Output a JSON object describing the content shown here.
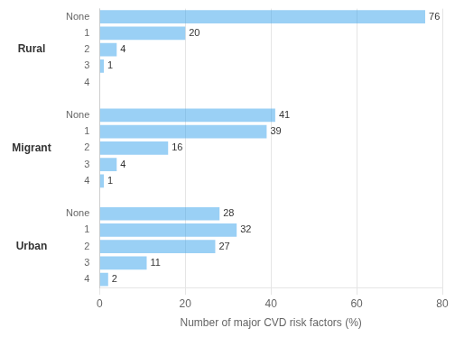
{
  "chart_data": {
    "type": "bar",
    "orientation": "horizontal",
    "xlabel": "Number of major CVD risk factors (%)",
    "categories": [
      "None",
      "1",
      "2",
      "3",
      "4"
    ],
    "series": [
      {
        "name": "Rural",
        "values": [
          76,
          20,
          4,
          1,
          0
        ],
        "value_labels": [
          "76",
          "20",
          "4",
          "1",
          null
        ]
      },
      {
        "name": "Migrant",
        "values": [
          41,
          39,
          16,
          4,
          1
        ],
        "value_labels": [
          "41",
          "39",
          "16",
          "4",
          "1"
        ]
      },
      {
        "name": "Urban",
        "values": [
          28,
          32,
          27,
          11,
          2
        ],
        "value_labels": [
          "28",
          "32",
          "27",
          "11",
          "2"
        ]
      }
    ],
    "xlim": [
      0,
      80
    ],
    "xticks": [
      0,
      20,
      40,
      60,
      80
    ],
    "grid": true,
    "data_labels": true
  }
}
